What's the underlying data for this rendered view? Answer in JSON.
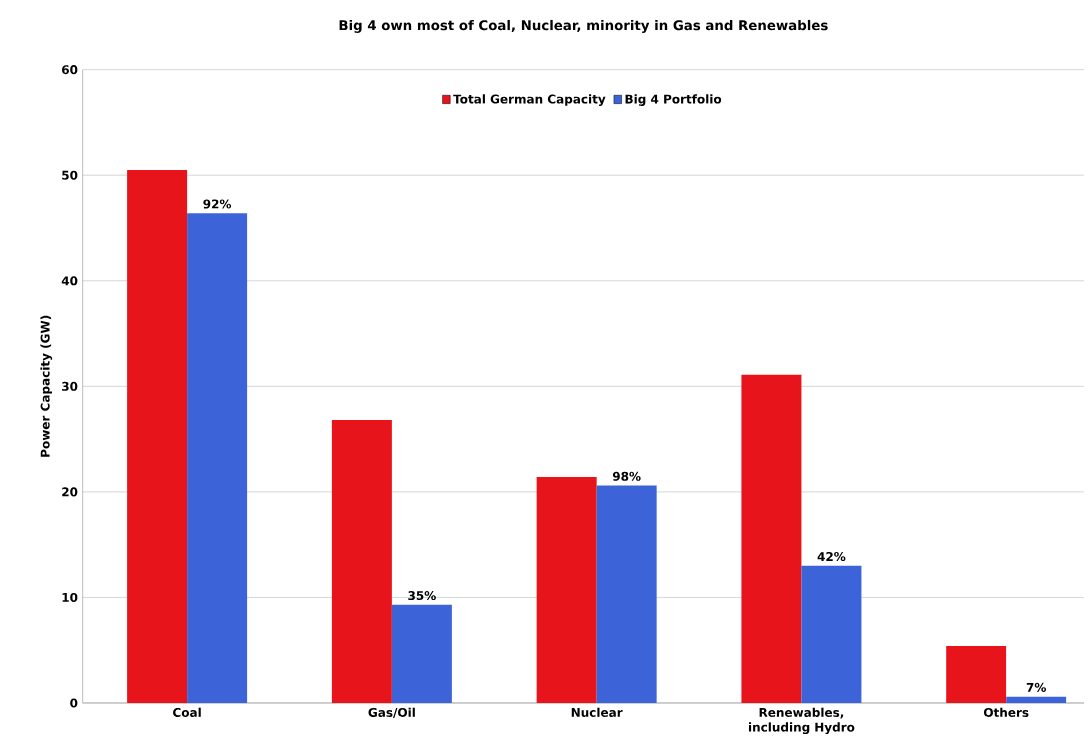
{
  "chart_data": {
    "type": "bar",
    "title": "Big 4 own most of Coal, Nuclear, minority in Gas and Renewables",
    "ylabel": "Power Capacity (GW)",
    "categories": [
      "Coal",
      "Gas/Oil",
      "Nuclear",
      "Renewables, including Hydro",
      "Others"
    ],
    "series": [
      {
        "name": "Total German Capacity",
        "color": "#e8141c",
        "values": [
          50.5,
          26.8,
          21.4,
          31.1,
          5.4
        ]
      },
      {
        "name": "Big 4 Portfolio",
        "color": "#3c64d8",
        "values": [
          46.4,
          9.3,
          20.6,
          13.0,
          0.6
        ]
      }
    ],
    "annotations": [
      {
        "text": "92%",
        "x": "Coal",
        "y": 46.4
      },
      {
        "text": "35%",
        "x": "Gas/Oil",
        "y": 9.3
      },
      {
        "text": "98%",
        "x": "Nuclear",
        "y": 20.6
      },
      {
        "text": "42%",
        "x": "Renewables, including Hydro",
        "y": 13.0
      },
      {
        "text": "7%",
        "x": "Others",
        "y": 0.6
      }
    ],
    "ylim": [
      0,
      60
    ],
    "yticks": [
      0,
      10,
      20,
      30,
      40,
      50,
      60
    ],
    "grid": "y",
    "legend": "top"
  }
}
